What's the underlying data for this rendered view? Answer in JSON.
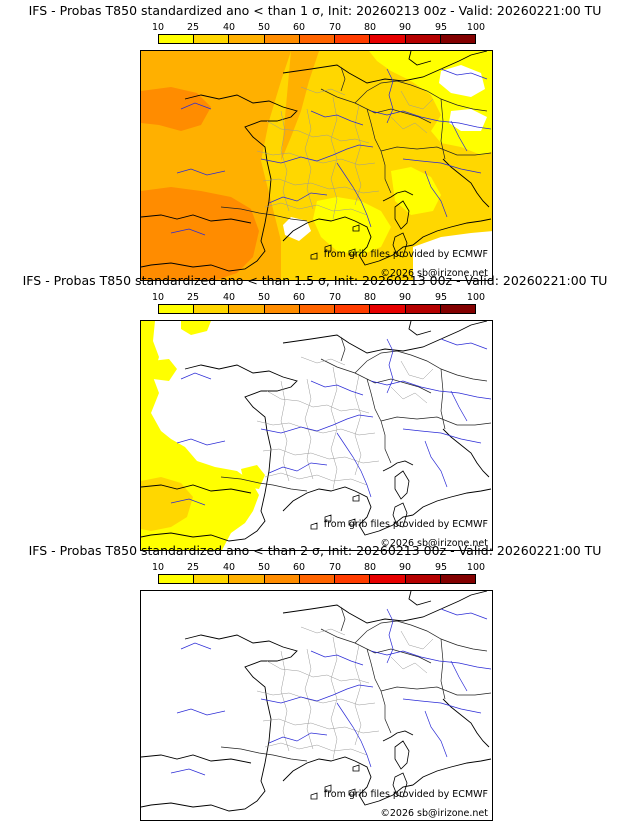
{
  "legend": {
    "ticks": [
      "10",
      "25",
      "40",
      "50",
      "60",
      "70",
      "80",
      "90",
      "95",
      "100"
    ],
    "colors": [
      "#ffff00",
      "#ffd700",
      "#ffb000",
      "#ff8c00",
      "#ff6400",
      "#ff3c00",
      "#e60000",
      "#b40000",
      "#820000",
      "#4b0000"
    ]
  },
  "credits": {
    "source": "from grib files provided by ECMWF",
    "copyright": "©2026 sb@irizone.net"
  },
  "panels": [
    {
      "title": "IFS - Probas T850  standardized ano < than 1 σ, Init: 20260213 00z - Valid: 20260221:00 TU"
    },
    {
      "title": "IFS - Probas T850  standardized ano < than 1.5 σ, Init: 20260213 00z - Valid: 20260221:00 TU"
    },
    {
      "title": "IFS - Probas T850  standardized ano < than 2 σ, Init: 20260213 00z - Valid: 20260221:00 TU"
    }
  ]
}
